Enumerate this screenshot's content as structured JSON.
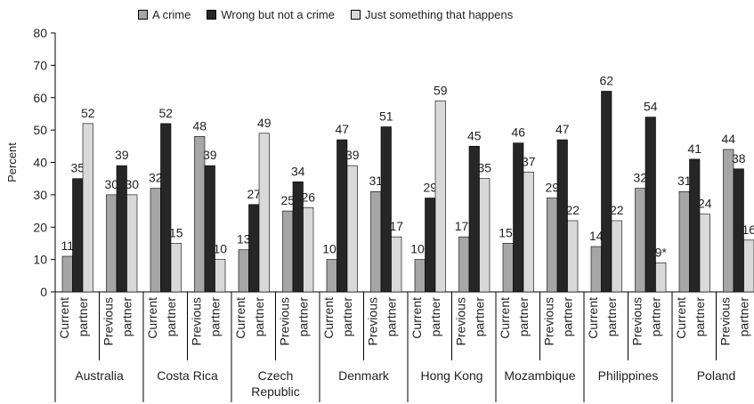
{
  "chart_data": {
    "type": "bar",
    "ylabel": "Percent",
    "ylim": [
      0,
      80
    ],
    "yticks": [
      0,
      10,
      20,
      30,
      40,
      50,
      60,
      70,
      80
    ],
    "grid": false,
    "legend_position": "top",
    "series": [
      {
        "name": "A crime",
        "color": "#a6a6a6"
      },
      {
        "name": "Wrong but not a crime",
        "color": "#262626"
      },
      {
        "name": "Just something that happens",
        "color": "#d9d9d9"
      }
    ],
    "groups": [
      {
        "country": [
          "Australia"
        ],
        "bars": [
          {
            "sub": [
              "Current",
              "partner"
            ],
            "values": [
              11,
              35,
              52
            ],
            "labels": [
              "11",
              "35",
              "52"
            ]
          },
          {
            "sub": [
              "Previous",
              "partner"
            ],
            "values": [
              30,
              39,
              30
            ],
            "labels": [
              "30",
              "39",
              "30"
            ]
          }
        ]
      },
      {
        "country": [
          "Costa Rica"
        ],
        "bars": [
          {
            "sub": [
              "Current",
              "partner"
            ],
            "values": [
              32,
              52,
              15
            ],
            "labels": [
              "32",
              "52",
              "15"
            ]
          },
          {
            "sub": [
              "Previous",
              "partner"
            ],
            "values": [
              48,
              39,
              10
            ],
            "labels": [
              "48",
              "39",
              "10"
            ]
          }
        ]
      },
      {
        "country": [
          "Czech",
          "Republic"
        ],
        "bars": [
          {
            "sub": [
              "Current",
              "partner"
            ],
            "values": [
              13,
              27,
              49
            ],
            "labels": [
              "13",
              "27",
              "49"
            ]
          },
          {
            "sub": [
              "Previous",
              "partner"
            ],
            "values": [
              25,
              34,
              26
            ],
            "labels": [
              "25",
              "34",
              "26"
            ]
          }
        ]
      },
      {
        "country": [
          "Denmark"
        ],
        "bars": [
          {
            "sub": [
              "Current",
              "partner"
            ],
            "values": [
              10,
              47,
              39
            ],
            "labels": [
              "10*",
              "47",
              "39"
            ]
          },
          {
            "sub": [
              "Previous",
              "partner"
            ],
            "values": [
              31,
              51,
              17
            ],
            "labels": [
              "31",
              "51",
              "17"
            ]
          }
        ]
      },
      {
        "country": [
          "Hong Kong"
        ],
        "bars": [
          {
            "sub": [
              "Current",
              "partner"
            ],
            "values": [
              10,
              29,
              59
            ],
            "labels": [
              "10*",
              "29",
              "59"
            ]
          },
          {
            "sub": [
              "Previous",
              "partner"
            ],
            "values": [
              17,
              45,
              35
            ],
            "labels": [
              "17*",
              "45",
              "35"
            ]
          }
        ]
      },
      {
        "country": [
          "Mozambique"
        ],
        "bars": [
          {
            "sub": [
              "Current",
              "partner"
            ],
            "values": [
              15,
              46,
              37
            ],
            "labels": [
              "15*",
              "46",
              "37"
            ]
          },
          {
            "sub": [
              "Previous",
              "partner"
            ],
            "values": [
              29,
              47,
              22
            ],
            "labels": [
              "29",
              "47",
              "22"
            ]
          }
        ]
      },
      {
        "country": [
          "Philippines"
        ],
        "bars": [
          {
            "sub": [
              "Current",
              "partner"
            ],
            "values": [
              14,
              62,
              22
            ],
            "labels": [
              "14",
              "62",
              "22"
            ]
          },
          {
            "sub": [
              "Previous",
              "partner"
            ],
            "values": [
              32,
              54,
              9
            ],
            "labels": [
              "32",
              "54",
              "9*"
            ]
          }
        ]
      },
      {
        "country": [
          "Poland"
        ],
        "bars": [
          {
            "sub": [
              "Current",
              "partner"
            ],
            "values": [
              31,
              41,
              24
            ],
            "labels": [
              "31",
              "41",
              "24"
            ]
          },
          {
            "sub": [
              "Previous",
              "partner"
            ],
            "values": [
              44,
              38,
              16
            ],
            "labels": [
              "44",
              "38",
              "16"
            ]
          }
        ]
      }
    ]
  }
}
